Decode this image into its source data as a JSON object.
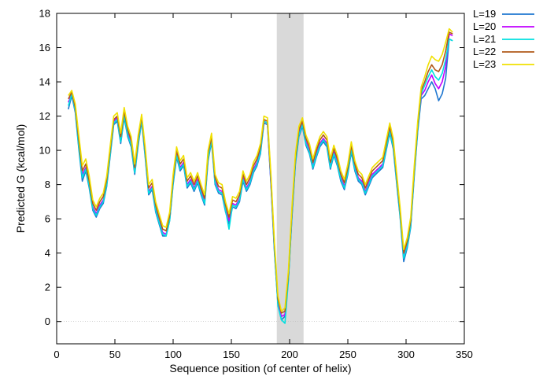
{
  "chart_data": {
    "type": "line",
    "title": "",
    "xlabel": "Sequence position (of center of helix)",
    "ylabel": "Predicted  G (kcal/mol)",
    "xlim": [
      0,
      350
    ],
    "ylim": [
      -1.3,
      18
    ],
    "xticks": [
      0,
      50,
      100,
      150,
      200,
      250,
      300,
      350
    ],
    "yticks": [
      0,
      2,
      4,
      6,
      8,
      10,
      12,
      14,
      16,
      18
    ],
    "grid": false,
    "zero_line": true,
    "legend": "top-right-outside",
    "highlight_region": {
      "x0": 189,
      "x1": 212,
      "color": "#d9d9d9"
    },
    "x": [
      10,
      13,
      16,
      19,
      22,
      25,
      28,
      31,
      34,
      37,
      40,
      43,
      46,
      49,
      52,
      55,
      58,
      61,
      64,
      67,
      70,
      73,
      76,
      79,
      82,
      85,
      88,
      91,
      94,
      97,
      100,
      103,
      106,
      109,
      112,
      115,
      118,
      121,
      124,
      127,
      130,
      133,
      136,
      139,
      142,
      145,
      148,
      151,
      154,
      157,
      160,
      163,
      166,
      169,
      172,
      175,
      178,
      181,
      184,
      187,
      190,
      193,
      196,
      199,
      202,
      205,
      208,
      211,
      214,
      217,
      220,
      223,
      226,
      229,
      232,
      235,
      238,
      241,
      244,
      247,
      250,
      253,
      256,
      259,
      262,
      265,
      268,
      271,
      274,
      277,
      280,
      283,
      286,
      289,
      292,
      295,
      298,
      301,
      304,
      307,
      310,
      313,
      316,
      319,
      322,
      325,
      328,
      331,
      334,
      337,
      340
    ],
    "series": [
      {
        "name": "L=19",
        "color": "#1f77d0",
        "values": [
          12.4,
          13.2,
          12.2,
          10.1,
          8.2,
          8.8,
          7.8,
          6.5,
          6.1,
          6.6,
          6.9,
          7.9,
          9.7,
          11.5,
          11.7,
          10.4,
          11.9,
          10.8,
          10.2,
          8.6,
          10.3,
          11.7,
          9.6,
          7.4,
          7.7,
          6.4,
          5.7,
          5.0,
          5.0,
          5.9,
          8.0,
          9.6,
          8.8,
          9.1,
          7.8,
          8.1,
          7.6,
          8.1,
          7.4,
          6.8,
          9.4,
          10.5,
          8.0,
          7.5,
          7.4,
          6.4,
          5.7,
          6.7,
          6.6,
          7.0,
          8.2,
          7.6,
          8.0,
          8.7,
          9.1,
          9.8,
          11.6,
          11.5,
          8.0,
          4.0,
          1.0,
          0.1,
          0.3,
          2.5,
          6.1,
          9.2,
          10.8,
          11.4,
          10.3,
          9.8,
          8.9,
          9.6,
          10.2,
          10.5,
          10.2,
          8.9,
          9.7,
          9.1,
          8.2,
          7.7,
          8.6,
          9.9,
          8.8,
          8.2,
          8.0,
          7.4,
          7.9,
          8.4,
          8.6,
          8.8,
          9.0,
          10.0,
          11.0,
          10.1,
          8.0,
          6.0,
          3.5,
          4.3,
          5.5,
          8.5,
          11.1,
          13.0,
          13.2,
          13.6,
          14.0,
          13.6,
          12.9,
          13.3,
          14.2,
          16.5,
          16.4
        ]
      },
      {
        "name": "L=20",
        "color": "#c000ff",
        "values": [
          12.8,
          13.3,
          12.4,
          10.4,
          8.6,
          9.0,
          8.0,
          6.7,
          6.3,
          6.8,
          7.1,
          8.1,
          9.9,
          11.7,
          11.9,
          10.6,
          12.1,
          11.0,
          10.4,
          8.8,
          10.5,
          11.9,
          9.8,
          7.6,
          7.9,
          6.6,
          5.9,
          5.2,
          5.1,
          6.0,
          8.2,
          9.8,
          9.0,
          9.3,
          8.0,
          8.3,
          7.8,
          8.3,
          7.6,
          7.0,
          9.6,
          10.7,
          8.2,
          7.7,
          7.6,
          6.6,
          5.9,
          6.9,
          6.8,
          7.2,
          8.4,
          7.8,
          8.2,
          8.9,
          9.3,
          10.0,
          11.7,
          11.6,
          8.1,
          4.2,
          1.1,
          0.3,
          0.4,
          2.6,
          6.3,
          9.4,
          11.0,
          11.6,
          10.5,
          10.0,
          9.1,
          9.8,
          10.4,
          10.7,
          10.4,
          9.1,
          9.9,
          9.3,
          8.4,
          7.9,
          8.8,
          10.1,
          9.0,
          8.4,
          8.2,
          7.6,
          8.1,
          8.6,
          8.8,
          9.0,
          9.2,
          10.2,
          11.2,
          10.3,
          8.2,
          6.2,
          3.8,
          4.5,
          5.7,
          8.7,
          11.3,
          13.2,
          13.5,
          14.0,
          14.4,
          13.9,
          13.6,
          14.0,
          14.9,
          16.8,
          16.7
        ]
      },
      {
        "name": "L=21",
        "color": "#00e0e0",
        "values": [
          12.6,
          13.3,
          12.3,
          10.2,
          8.4,
          8.9,
          7.9,
          6.6,
          6.2,
          6.7,
          7.0,
          8.0,
          9.8,
          11.6,
          11.8,
          10.5,
          12.0,
          10.9,
          10.3,
          8.7,
          10.4,
          11.8,
          9.7,
          7.5,
          7.8,
          6.5,
          5.8,
          5.1,
          5.0,
          5.9,
          8.1,
          9.7,
          8.9,
          9.2,
          7.9,
          8.2,
          7.7,
          8.2,
          7.5,
          6.9,
          9.5,
          10.6,
          8.1,
          7.6,
          7.5,
          6.5,
          5.4,
          6.8,
          6.7,
          7.1,
          8.3,
          7.7,
          8.1,
          8.8,
          9.2,
          9.9,
          11.7,
          11.6,
          8.2,
          4.1,
          0.9,
          0.1,
          -0.1,
          2.4,
          6.2,
          9.3,
          10.9,
          11.5,
          10.4,
          9.9,
          9.0,
          9.7,
          10.3,
          10.6,
          10.3,
          9.0,
          9.8,
          9.2,
          8.3,
          7.8,
          8.7,
          10.0,
          8.9,
          8.3,
          8.1,
          7.5,
          8.0,
          8.5,
          8.7,
          8.9,
          9.1,
          10.1,
          11.1,
          10.2,
          8.1,
          6.1,
          3.7,
          4.4,
          5.6,
          8.6,
          11.2,
          13.3,
          13.8,
          14.3,
          14.7,
          14.3,
          14.1,
          14.5,
          15.3,
          16.5,
          16.4
        ]
      },
      {
        "name": "L=22",
        "color": "#b05a1a",
        "values": [
          13.0,
          13.4,
          12.5,
          10.6,
          8.8,
          9.2,
          8.2,
          6.9,
          6.5,
          7.0,
          7.3,
          8.3,
          10.1,
          11.8,
          12.0,
          10.8,
          12.3,
          11.2,
          10.6,
          9.0,
          10.7,
          12.0,
          10.0,
          7.8,
          8.1,
          6.8,
          6.1,
          5.4,
          5.3,
          6.2,
          8.4,
          10.0,
          9.2,
          9.5,
          8.2,
          8.5,
          8.0,
          8.5,
          7.8,
          7.2,
          9.8,
          10.8,
          8.4,
          7.9,
          7.8,
          6.8,
          6.1,
          7.1,
          7.0,
          7.4,
          8.6,
          8.0,
          8.4,
          9.1,
          9.5,
          10.2,
          11.8,
          11.7,
          8.4,
          4.4,
          1.3,
          0.5,
          0.6,
          2.8,
          6.5,
          9.6,
          11.2,
          11.7,
          10.7,
          10.2,
          9.3,
          10.0,
          10.6,
          10.9,
          10.6,
          9.3,
          10.1,
          9.5,
          8.6,
          8.1,
          9.0,
          10.3,
          9.2,
          8.6,
          8.4,
          7.8,
          8.3,
          8.8,
          9.0,
          9.2,
          9.4,
          10.4,
          11.4,
          10.5,
          8.4,
          6.4,
          4.0,
          4.7,
          5.9,
          8.9,
          11.5,
          13.5,
          14.0,
          14.6,
          15.0,
          14.7,
          14.6,
          15.0,
          15.8,
          16.9,
          16.8
        ]
      },
      {
        "name": "L=23",
        "color": "#f0e000",
        "values": [
          13.2,
          13.5,
          12.7,
          10.9,
          9.1,
          9.5,
          8.5,
          7.1,
          6.7,
          7.2,
          7.5,
          8.5,
          10.3,
          12.0,
          12.2,
          11.0,
          12.5,
          11.4,
          10.8,
          9.2,
          10.9,
          12.1,
          10.2,
          8.0,
          8.3,
          7.0,
          6.3,
          5.6,
          5.5,
          6.4,
          8.6,
          10.2,
          9.4,
          9.7,
          8.4,
          8.7,
          8.2,
          8.7,
          8.0,
          7.4,
          10.0,
          11.0,
          8.6,
          8.1,
          8.0,
          7.0,
          6.3,
          7.3,
          7.2,
          7.6,
          8.8,
          8.2,
          8.6,
          9.3,
          9.7,
          10.4,
          12.0,
          11.9,
          8.6,
          4.6,
          1.5,
          0.6,
          0.8,
          3.0,
          6.7,
          9.8,
          11.4,
          11.9,
          10.9,
          10.4,
          9.5,
          10.2,
          10.8,
          11.1,
          10.8,
          9.5,
          10.3,
          9.7,
          8.8,
          8.3,
          9.2,
          10.5,
          9.4,
          8.8,
          8.6,
          8.0,
          8.5,
          9.0,
          9.2,
          9.4,
          9.6,
          10.6,
          11.6,
          10.7,
          8.6,
          6.6,
          4.2,
          4.9,
          6.1,
          9.1,
          11.7,
          13.7,
          14.3,
          15.0,
          15.5,
          15.3,
          15.2,
          15.6,
          16.3,
          17.1,
          16.9
        ]
      }
    ]
  }
}
